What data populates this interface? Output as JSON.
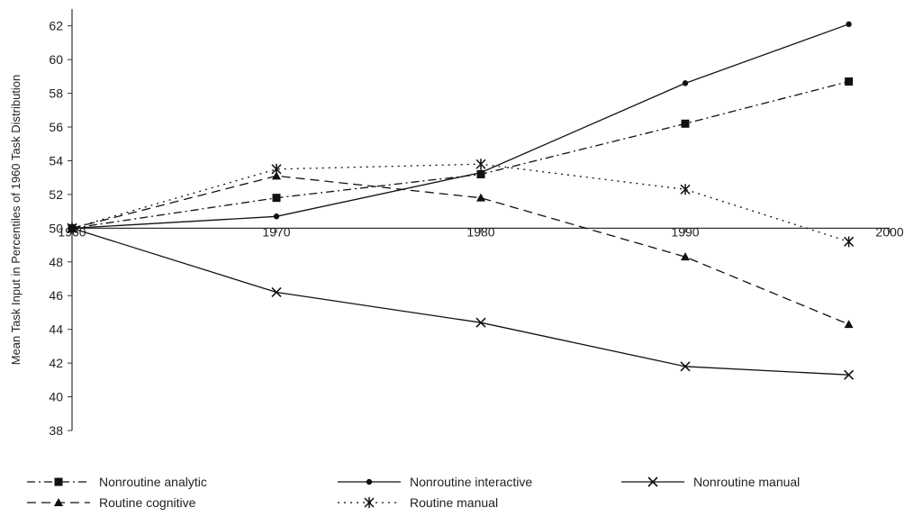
{
  "chart_data": {
    "type": "line",
    "title": "",
    "xlabel": "",
    "ylabel": "Mean Task Input in Percentiles of 1960 Task Distribution",
    "x_ticks": [
      "1960",
      "1970",
      "1980",
      "1990",
      "2000"
    ],
    "y_ticks": [
      "38",
      "40",
      "42",
      "44",
      "46",
      "48",
      "50",
      "52",
      "54",
      "56",
      "58",
      "60",
      "62"
    ],
    "xlim": [
      1960,
      2000
    ],
    "ylim": [
      38,
      63
    ],
    "x_axis_crosses_y_at": 50,
    "grid": false,
    "legend_position": "bottom",
    "x": [
      1960,
      1970,
      1980,
      1990,
      1998
    ],
    "series": [
      {
        "name": "Nonroutine analytic",
        "marker": "square",
        "line": "dash-dot",
        "values": [
          50.0,
          51.8,
          53.2,
          56.2,
          58.7
        ]
      },
      {
        "name": "Nonroutine interactive",
        "marker": "diamond",
        "line": "solid",
        "values": [
          50.0,
          50.7,
          53.3,
          58.6,
          62.1
        ]
      },
      {
        "name": "Nonroutine manual",
        "marker": "x",
        "line": "solid",
        "values": [
          50.0,
          46.2,
          44.4,
          41.8,
          41.3
        ]
      },
      {
        "name": "Routine cognitive",
        "marker": "triangle",
        "line": "dashed",
        "values": [
          50.0,
          53.1,
          51.8,
          48.3,
          44.3
        ]
      },
      {
        "name": "Routine manual",
        "marker": "star",
        "line": "dotted",
        "values": [
          50.0,
          53.5,
          53.8,
          52.3,
          49.2
        ]
      }
    ]
  }
}
